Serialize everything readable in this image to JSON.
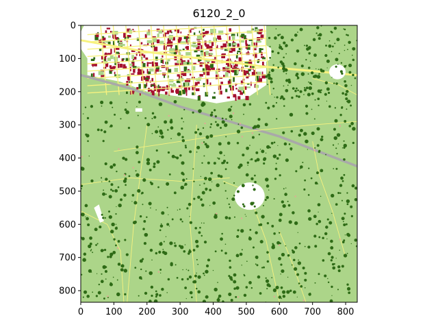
{
  "title": "6120_2_0",
  "axes": {
    "x_ticks": [
      0,
      100,
      200,
      300,
      400,
      500,
      600,
      700,
      800
    ],
    "y_ticks": [
      0,
      100,
      200,
      300,
      400,
      500,
      600,
      700,
      800
    ],
    "xlim": [
      0,
      835
    ],
    "ylim": [
      835,
      0
    ]
  },
  "image": {
    "kind": "land-cover segmentation mask",
    "palette": {
      "grass": "#acd589",
      "tree": "#2e6b16",
      "building": "#a5102e",
      "road": "#f7f27f",
      "rail": "#a9a9a9",
      "bare": "#ffffff",
      "shrub": "#e6a595"
    }
  }
}
